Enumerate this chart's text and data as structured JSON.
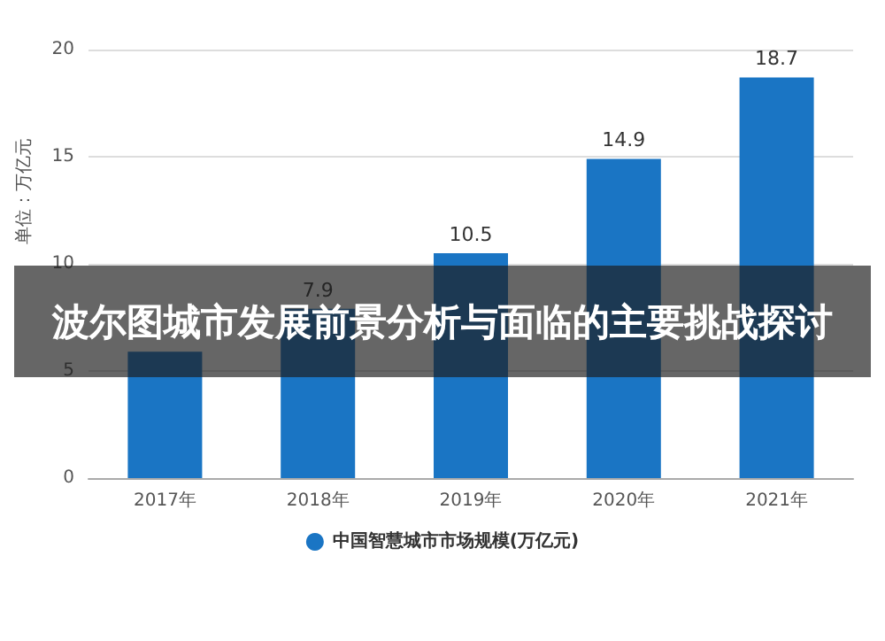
{
  "chart_data": {
    "type": "bar",
    "title": "波尔图城市发展前景分析与面临的主要挑战探讨",
    "ylabel": "单位：万亿元",
    "categories": [
      "2017年",
      "2018年",
      "2019年",
      "2020年",
      "2021年"
    ],
    "series": [
      {
        "name": "中国智慧城市市场规模(万亿元)",
        "color": "#1a75c4",
        "values": [
          5.9,
          7.9,
          10.5,
          14.9,
          18.7
        ],
        "value_labels": [
          null,
          "7.9",
          "10.5",
          "14.9",
          "18.7"
        ]
      }
    ],
    "ylim": [
      0,
      20
    ],
    "yticks": [
      0,
      5,
      10,
      15,
      20
    ],
    "grid": "y",
    "legend": "bottom"
  }
}
